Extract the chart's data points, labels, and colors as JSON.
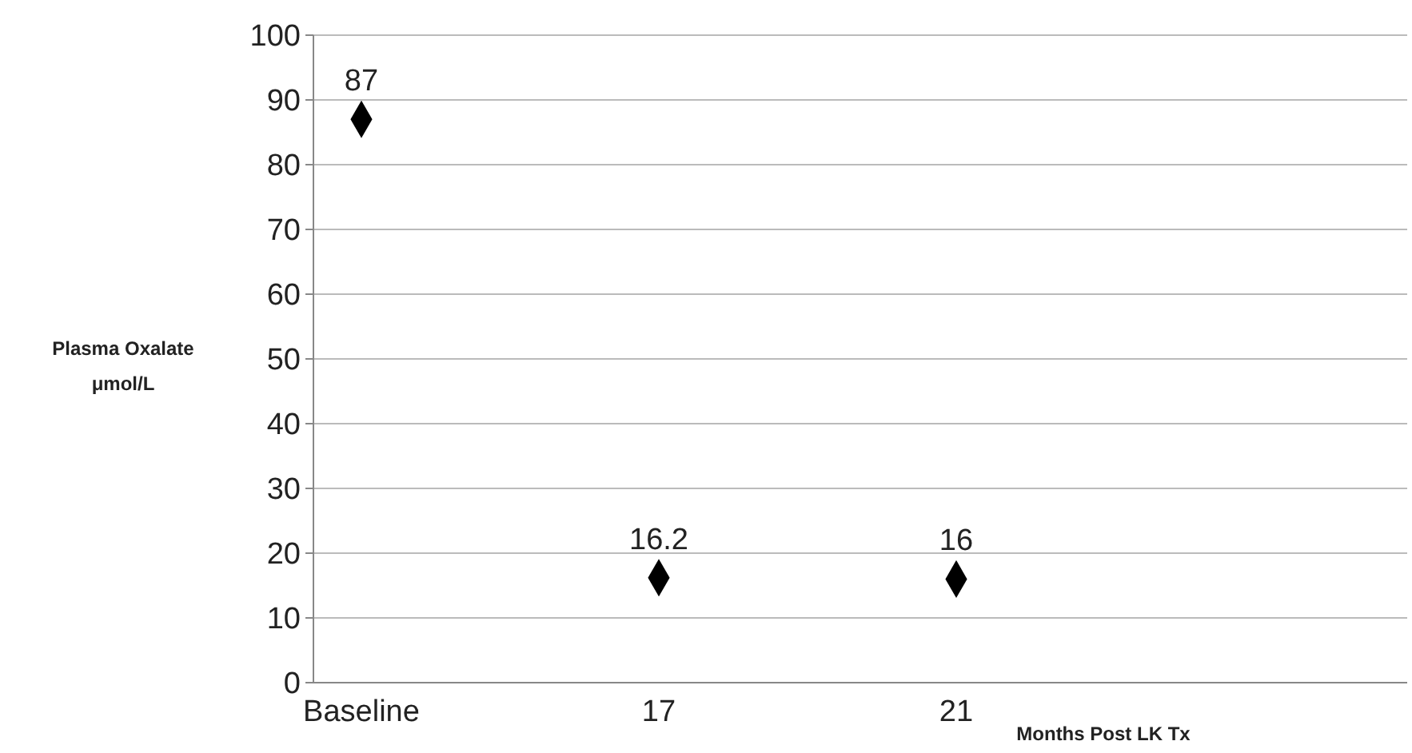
{
  "chart_data": {
    "type": "scatter",
    "categories": [
      "Baseline",
      "17",
      "21",
      null
    ],
    "series": [
      {
        "color": "#000000",
        "values": [
          87,
          16.2,
          16,
          null
        ]
      }
    ],
    "ylabel": "Plasma Oxalate\nμmol/L",
    "xlabel": "Months Post LK Tx",
    "ylim": [
      0,
      100
    ],
    "yticks": [
      0,
      10,
      20,
      30,
      40,
      50,
      60,
      70,
      80,
      90,
      100
    ],
    "grid": "y",
    "marker": "diamond",
    "data_labels": true
  }
}
